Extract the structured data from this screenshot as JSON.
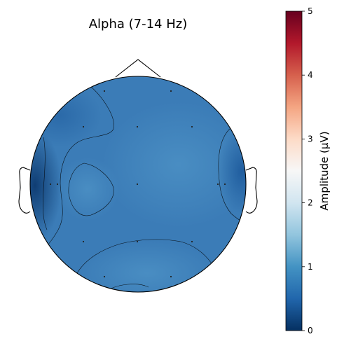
{
  "chart_data": {
    "type": "heatmap",
    "title": "Alpha (7-14 Hz)",
    "colorbar": {
      "label": "Amplitude (µV)",
      "ticks": [
        0,
        1,
        2,
        3,
        4,
        5
      ],
      "range": [
        0,
        5
      ],
      "colormap": "RdBu_r",
      "colors": [
        "#053061",
        "#2166ac",
        "#4393c3",
        "#92c5de",
        "#d1e5f0",
        "#f7f7f7",
        "#fddbc7",
        "#f4a582",
        "#d6604d",
        "#b2182b",
        "#67001f"
      ]
    },
    "background_color": "#3b7cb7",
    "grid": false,
    "legend": "none"
  }
}
